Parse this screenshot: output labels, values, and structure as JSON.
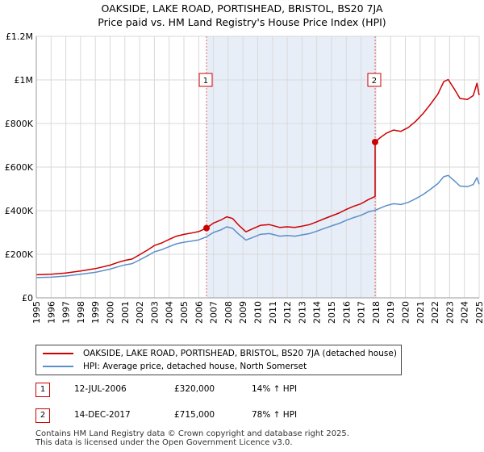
{
  "title_line1": "OAKSIDE, LAKE ROAD, PORTISHEAD, BRISTOL, BS20 7JA",
  "title_line2": "Price paid vs. HM Land Registry's House Price Index (HPI)",
  "colors": {
    "price": "#cc0000",
    "hpi": "#5b8fc9",
    "shade": "#e8eef8",
    "grid": "#d9d9d9",
    "marker_line": "#e06666"
  },
  "chart_data": {
    "type": "line",
    "ylim": [
      0,
      1200000
    ],
    "xlim": [
      1995,
      2025
    ],
    "yticks": [
      {
        "value": 0,
        "label": "£0"
      },
      {
        "value": 200000,
        "label": "£200K"
      },
      {
        "value": 400000,
        "label": "£400K"
      },
      {
        "value": 600000,
        "label": "£600K"
      },
      {
        "value": 800000,
        "label": "£800K"
      },
      {
        "value": 1000000,
        "label": "£1M"
      },
      {
        "value": 1200000,
        "label": "£1.2M"
      }
    ],
    "xticks": [
      "1995",
      "1996",
      "1997",
      "1998",
      "1999",
      "2000",
      "2001",
      "2002",
      "2003",
      "2004",
      "2005",
      "2006",
      "2007",
      "2008",
      "2009",
      "2010",
      "2011",
      "2012",
      "2013",
      "2014",
      "2015",
      "2016",
      "2017",
      "2018",
      "2019",
      "2020",
      "2021",
      "2022",
      "2023",
      "2024",
      "2025"
    ],
    "series": [
      {
        "name": "OAKSIDE, LAKE ROAD, PORTISHEAD, BRISTOL, BS20 7JA (detached house)",
        "color": "#cc0000",
        "points": [
          [
            1995.0,
            106000
          ],
          [
            1996.0,
            108000
          ],
          [
            1997.0,
            114000
          ],
          [
            1998.0,
            123000
          ],
          [
            1999.0,
            134000
          ],
          [
            2000.0,
            150000
          ],
          [
            2000.5,
            162000
          ],
          [
            2001.0,
            172000
          ],
          [
            2001.5,
            178000
          ],
          [
            2002.0,
            198000
          ],
          [
            2002.5,
            218000
          ],
          [
            2003.0,
            240000
          ],
          [
            2003.5,
            252000
          ],
          [
            2004.0,
            268000
          ],
          [
            2004.5,
            283000
          ],
          [
            2005.0,
            291000
          ],
          [
            2005.5,
            297000
          ],
          [
            2006.0,
            304000
          ],
          [
            2006.53,
            320000
          ],
          [
            2007.0,
            343000
          ],
          [
            2007.5,
            357000
          ],
          [
            2007.9,
            372000
          ],
          [
            2008.3,
            364000
          ],
          [
            2008.7,
            334000
          ],
          [
            2009.2,
            303000
          ],
          [
            2009.7,
            318000
          ],
          [
            2010.2,
            333000
          ],
          [
            2010.8,
            336000
          ],
          [
            2011.5,
            323000
          ],
          [
            2012.0,
            326000
          ],
          [
            2012.5,
            323000
          ],
          [
            2013.0,
            329000
          ],
          [
            2013.5,
            336000
          ],
          [
            2014.0,
            349000
          ],
          [
            2014.5,
            363000
          ],
          [
            2015.0,
            376000
          ],
          [
            2015.5,
            389000
          ],
          [
            2016.0,
            406000
          ],
          [
            2016.5,
            420000
          ],
          [
            2017.0,
            432000
          ],
          [
            2017.5,
            451000
          ],
          [
            2017.95,
            465000
          ],
          [
            2017.95,
            715000
          ],
          [
            2018.3,
            735000
          ],
          [
            2018.7,
            755000
          ],
          [
            2019.2,
            770000
          ],
          [
            2019.7,
            764000
          ],
          [
            2020.2,
            782000
          ],
          [
            2020.7,
            810000
          ],
          [
            2021.2,
            846000
          ],
          [
            2021.7,
            888000
          ],
          [
            2022.2,
            935000
          ],
          [
            2022.6,
            992000
          ],
          [
            2022.9,
            1002000
          ],
          [
            2023.3,
            960000
          ],
          [
            2023.7,
            915000
          ],
          [
            2024.2,
            910000
          ],
          [
            2024.6,
            928000
          ],
          [
            2024.85,
            985000
          ],
          [
            2025.0,
            930000
          ]
        ]
      },
      {
        "name": "HPI: Average price, detached house, North Somerset",
        "color": "#5b8fc9",
        "points": [
          [
            1995.0,
            93000
          ],
          [
            1996.0,
            95000
          ],
          [
            1997.0,
            100000
          ],
          [
            1998.0,
            108000
          ],
          [
            1999.0,
            117000
          ],
          [
            2000.0,
            132000
          ],
          [
            2000.5,
            142000
          ],
          [
            2001.0,
            151000
          ],
          [
            2001.5,
            157000
          ],
          [
            2002.0,
            174000
          ],
          [
            2002.5,
            192000
          ],
          [
            2003.0,
            211000
          ],
          [
            2003.5,
            221000
          ],
          [
            2004.0,
            235000
          ],
          [
            2004.5,
            248000
          ],
          [
            2005.0,
            255000
          ],
          [
            2005.5,
            260000
          ],
          [
            2006.0,
            266000
          ],
          [
            2006.53,
            280000
          ],
          [
            2007.0,
            300000
          ],
          [
            2007.5,
            312000
          ],
          [
            2007.9,
            326000
          ],
          [
            2008.3,
            319000
          ],
          [
            2008.7,
            293000
          ],
          [
            2009.2,
            265000
          ],
          [
            2009.7,
            278000
          ],
          [
            2010.2,
            292000
          ],
          [
            2010.8,
            295000
          ],
          [
            2011.5,
            283000
          ],
          [
            2012.0,
            286000
          ],
          [
            2012.5,
            283000
          ],
          [
            2013.0,
            289000
          ],
          [
            2013.5,
            295000
          ],
          [
            2014.0,
            306000
          ],
          [
            2014.5,
            318000
          ],
          [
            2015.0,
            330000
          ],
          [
            2015.5,
            341000
          ],
          [
            2016.0,
            356000
          ],
          [
            2016.5,
            368000
          ],
          [
            2017.0,
            379000
          ],
          [
            2017.5,
            395000
          ],
          [
            2017.95,
            402000
          ],
          [
            2018.3,
            412000
          ],
          [
            2018.7,
            423000
          ],
          [
            2019.2,
            432000
          ],
          [
            2019.7,
            428000
          ],
          [
            2020.2,
            438000
          ],
          [
            2020.7,
            455000
          ],
          [
            2021.2,
            474000
          ],
          [
            2021.7,
            498000
          ],
          [
            2022.2,
            524000
          ],
          [
            2022.6,
            556000
          ],
          [
            2022.9,
            562000
          ],
          [
            2023.3,
            538000
          ],
          [
            2023.7,
            513000
          ],
          [
            2024.2,
            510000
          ],
          [
            2024.6,
            520000
          ],
          [
            2024.85,
            552000
          ],
          [
            2025.0,
            521000
          ]
        ]
      }
    ],
    "markers": [
      {
        "label": "1",
        "x": 2006.53,
        "y": 320000
      },
      {
        "label": "2",
        "x": 2017.95,
        "y": 715000
      }
    ],
    "shaded_region": [
      2006.53,
      2017.95
    ]
  },
  "legend": {
    "price_label": "OAKSIDE, LAKE ROAD, PORTISHEAD, BRISTOL, BS20 7JA (detached house)",
    "hpi_label": "HPI: Average price, detached house, North Somerset"
  },
  "transactions": [
    {
      "num": "1",
      "date": "12-JUL-2006",
      "price": "£320,000",
      "hpi": "14% ↑ HPI"
    },
    {
      "num": "2",
      "date": "14-DEC-2017",
      "price": "£715,000",
      "hpi": "78% ↑ HPI"
    }
  ],
  "footer_line1": "Contains HM Land Registry data © Crown copyright and database right 2025.",
  "footer_line2": "This data is licensed under the Open Government Licence v3.0."
}
